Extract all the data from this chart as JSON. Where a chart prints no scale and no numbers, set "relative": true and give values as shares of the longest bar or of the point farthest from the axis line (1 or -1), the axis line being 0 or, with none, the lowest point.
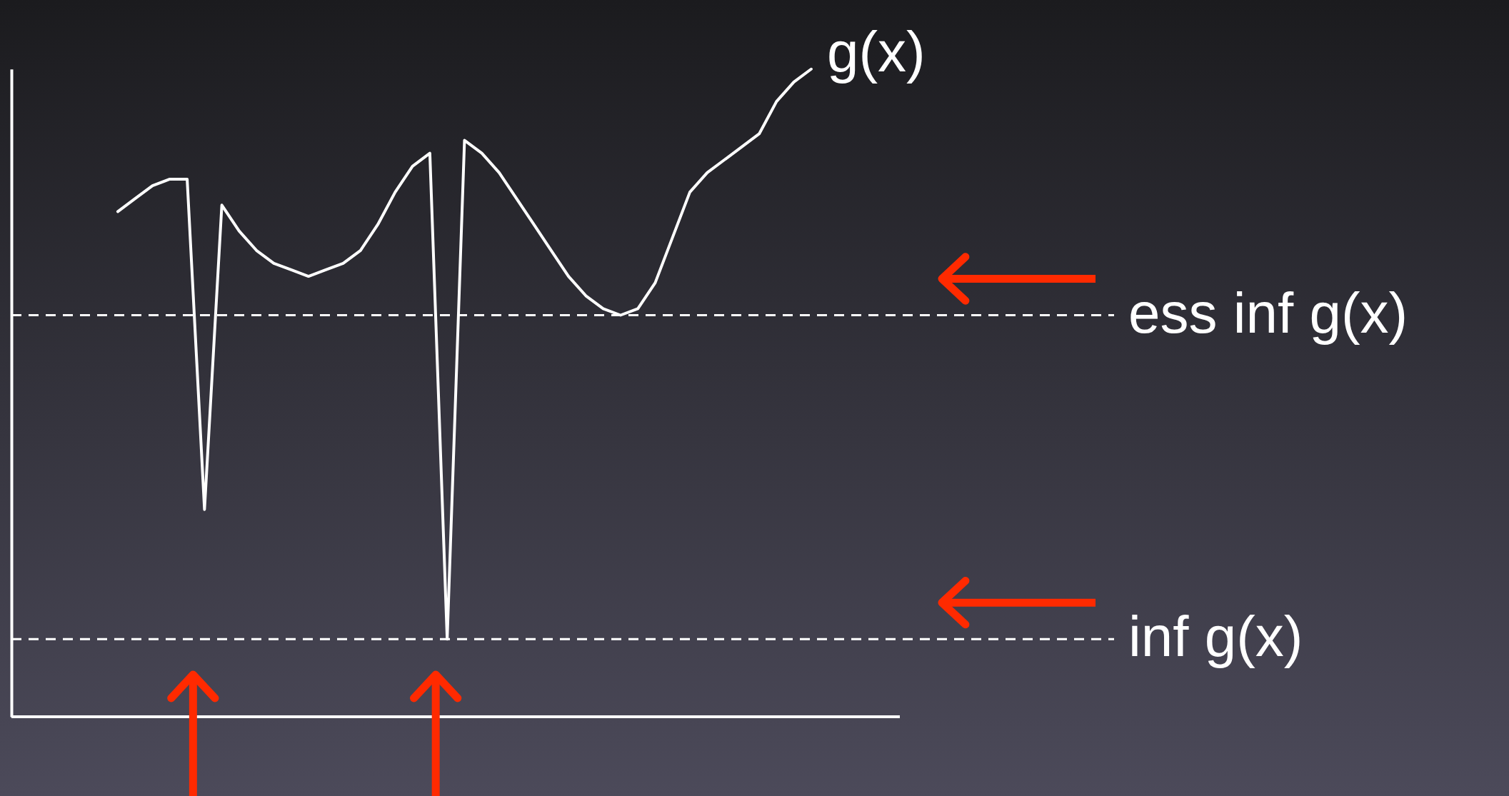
{
  "chart_data": {
    "type": "line",
    "relative": true,
    "marker": "none",
    "line_style": "solid",
    "categories": [
      null,
      null,
      null,
      null,
      null,
      null,
      null,
      null,
      null,
      null,
      null,
      null,
      null,
      null,
      null,
      null,
      null,
      null,
      null,
      null,
      null,
      null,
      null,
      null,
      null,
      null,
      null,
      null,
      null,
      null,
      null,
      null,
      null,
      null,
      null,
      null,
      null,
      null,
      null,
      null,
      null
    ],
    "series": [
      {
        "name": "g(x)",
        "color": "#ffffff",
        "values": [
          0.78,
          0.8,
          0.82,
          0.83,
          0.83,
          0.32,
          0.79,
          0.75,
          0.72,
          0.7,
          0.69,
          0.68,
          0.69,
          0.7,
          0.72,
          0.76,
          0.81,
          0.85,
          0.87,
          0.12,
          0.89,
          0.87,
          0.84,
          0.8,
          0.76,
          0.72,
          0.68,
          0.65,
          0.63,
          0.62,
          0.63,
          0.67,
          0.74,
          0.81,
          0.84,
          0.86,
          0.88,
          0.9,
          0.95,
          0.98,
          1
        ]
      }
    ],
    "ref_lines": [
      {
        "axis": "y",
        "value": 0.62,
        "label": "ess inf g(x)",
        "color": "#ffffff",
        "line_style": "dashed"
      },
      {
        "axis": "y",
        "value": 0.12,
        "label": "inf g(x)",
        "color": "#ffffff",
        "line_style": "dashed"
      }
    ]
  }
}
